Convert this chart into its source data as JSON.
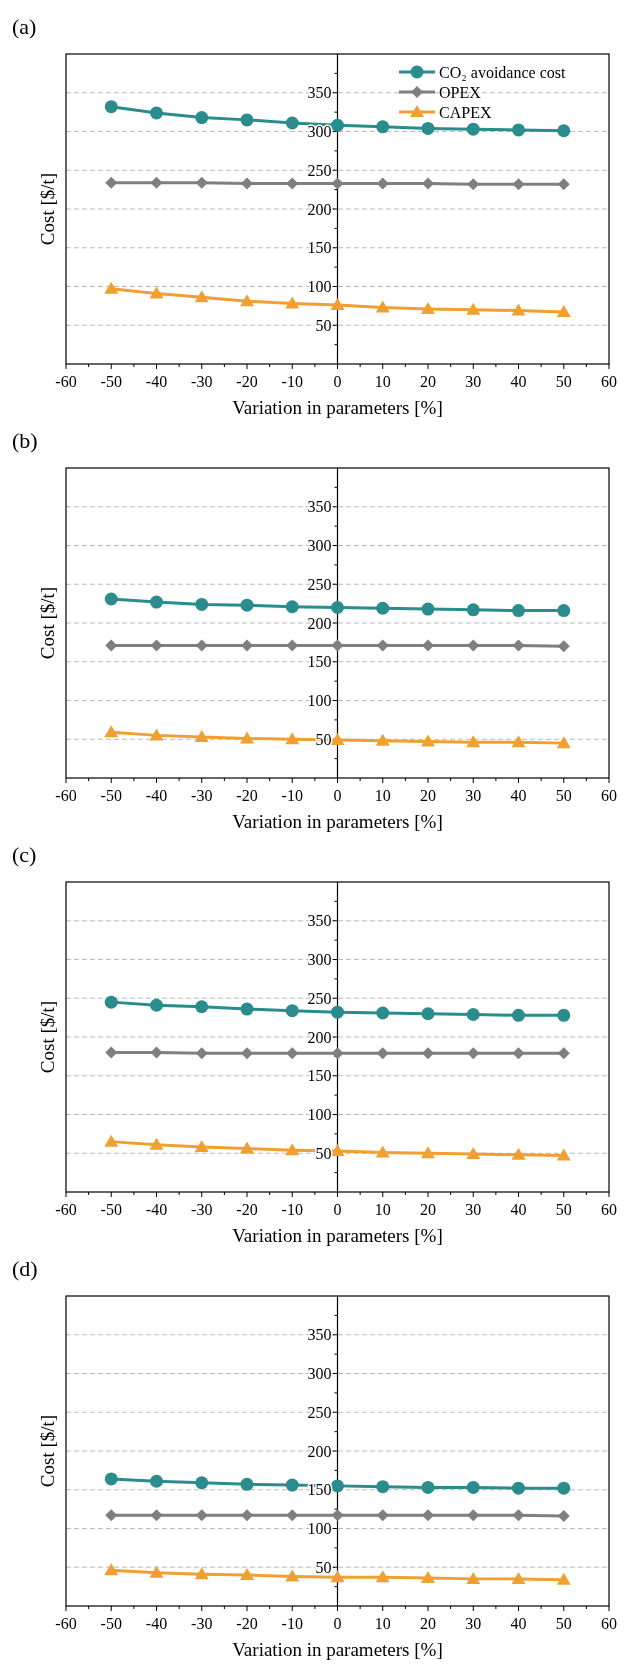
{
  "chart_data": [
    {
      "type": "line",
      "title": "(a)",
      "xlabel": "Variation in parameters [%]",
      "ylabel": "Cost [$/t]",
      "x": [
        -50,
        -40,
        -30,
        -20,
        -10,
        0,
        10,
        20,
        30,
        40,
        50
      ],
      "xlim": [
        -60,
        60
      ],
      "ylim": [
        0,
        400
      ],
      "xticks": [
        -60,
        {
          "value": -55,
          "label": null
        },
        -50,
        {
          "value": -45,
          "label": null
        },
        -40,
        {
          "value": -35,
          "label": null
        },
        -30,
        {
          "value": -25,
          "label": null
        },
        -20,
        {
          "value": -15,
          "label": null
        },
        -10,
        {
          "value": -5,
          "label": null
        },
        0,
        {
          "value": 5,
          "label": null
        },
        10,
        {
          "value": 15,
          "label": null
        },
        20,
        {
          "value": 25,
          "label": null
        },
        30,
        {
          "value": 35,
          "label": null
        },
        40,
        {
          "value": 45,
          "label": null
        },
        50,
        {
          "value": 55,
          "label": null
        },
        60
      ],
      "yticks": [
        {
          "value": 25,
          "label": null
        },
        50,
        {
          "value": 75,
          "label": null
        },
        100,
        {
          "value": 125,
          "label": null
        },
        150,
        {
          "value": 175,
          "label": null
        },
        200,
        {
          "value": 225,
          "label": null
        },
        250,
        {
          "value": 275,
          "label": null
        },
        300,
        {
          "value": 325,
          "label": null
        },
        350,
        {
          "value": 375,
          "label": null
        }
      ],
      "grid": "y",
      "legend": "top right",
      "line_style": "solid",
      "series": [
        {
          "name": "CO₂ avoidance cost",
          "color": "#2a8c8c",
          "marker": "circle",
          "values": [
            332,
            324,
            318,
            315,
            311,
            308,
            306,
            304,
            303,
            302,
            301
          ]
        },
        {
          "name": "OPEX",
          "color": "#7f7f7f",
          "marker": "diamond",
          "values": [
            234,
            234,
            234,
            233,
            233,
            233,
            233,
            233,
            232,
            232,
            232
          ]
        },
        {
          "name": "CAPEX",
          "color": "#f0a030",
          "marker": "triangle",
          "values": [
            97,
            91,
            86,
            81,
            78,
            76,
            73,
            71,
            70,
            69,
            67
          ]
        }
      ]
    },
    {
      "type": "line",
      "title": "(b)",
      "xlabel": "Variation in parameters [%]",
      "ylabel": "Cost [$/t]",
      "x": [
        -50,
        -40,
        -30,
        -20,
        -10,
        0,
        10,
        20,
        30,
        40,
        50
      ],
      "xlim": [
        -60,
        60
      ],
      "ylim": [
        0,
        400
      ],
      "xticks": [
        -60,
        {
          "value": -55,
          "label": null
        },
        -50,
        {
          "value": -45,
          "label": null
        },
        -40,
        {
          "value": -35,
          "label": null
        },
        -30,
        {
          "value": -25,
          "label": null
        },
        -20,
        {
          "value": -15,
          "label": null
        },
        -10,
        {
          "value": -5,
          "label": null
        },
        0,
        {
          "value": 5,
          "label": null
        },
        10,
        {
          "value": 15,
          "label": null
        },
        20,
        {
          "value": 25,
          "label": null
        },
        30,
        {
          "value": 35,
          "label": null
        },
        40,
        {
          "value": 45,
          "label": null
        },
        50,
        {
          "value": 55,
          "label": null
        },
        60
      ],
      "yticks": [
        {
          "value": 25,
          "label": null
        },
        50,
        {
          "value": 75,
          "label": null
        },
        100,
        {
          "value": 125,
          "label": null
        },
        150,
        {
          "value": 175,
          "label": null
        },
        200,
        {
          "value": 225,
          "label": null
        },
        250,
        {
          "value": 275,
          "label": null
        },
        300,
        {
          "value": 325,
          "label": null
        },
        350,
        {
          "value": 375,
          "label": null
        }
      ],
      "grid": "y",
      "line_style": "solid",
      "series": [
        {
          "color": "#2a8c8c",
          "marker": "circle",
          "values": [
            231,
            227,
            224,
            223,
            221,
            220,
            219,
            218,
            217,
            216,
            216
          ]
        },
        {
          "color": "#7f7f7f",
          "marker": "diamond",
          "values": [
            171,
            171,
            171,
            171,
            171,
            171,
            171,
            171,
            171,
            171,
            170
          ]
        },
        {
          "color": "#f0a030",
          "marker": "triangle",
          "values": [
            59,
            55,
            53,
            51,
            50,
            49,
            48,
            47,
            46,
            46,
            45
          ]
        }
      ]
    },
    {
      "type": "line",
      "title": "(c)",
      "xlabel": "Variation in parameters [%]",
      "ylabel": "Cost [$/t]",
      "x": [
        -50,
        -40,
        -30,
        -20,
        -10,
        0,
        10,
        20,
        30,
        40,
        50
      ],
      "xlim": [
        -60,
        60
      ],
      "ylim": [
        0,
        400
      ],
      "xticks": [
        -60,
        {
          "value": -55,
          "label": null
        },
        -50,
        {
          "value": -45,
          "label": null
        },
        -40,
        {
          "value": -35,
          "label": null
        },
        -30,
        {
          "value": -25,
          "label": null
        },
        -20,
        {
          "value": -15,
          "label": null
        },
        -10,
        {
          "value": -5,
          "label": null
        },
        0,
        {
          "value": 5,
          "label": null
        },
        10,
        {
          "value": 15,
          "label": null
        },
        20,
        {
          "value": 25,
          "label": null
        },
        30,
        {
          "value": 35,
          "label": null
        },
        40,
        {
          "value": 45,
          "label": null
        },
        50,
        {
          "value": 55,
          "label": null
        },
        60
      ],
      "yticks": [
        {
          "value": 25,
          "label": null
        },
        50,
        {
          "value": 75,
          "label": null
        },
        100,
        {
          "value": 125,
          "label": null
        },
        150,
        {
          "value": 175,
          "label": null
        },
        200,
        {
          "value": 225,
          "label": null
        },
        250,
        {
          "value": 275,
          "label": null
        },
        300,
        {
          "value": 325,
          "label": null
        },
        350,
        {
          "value": 375,
          "label": null
        }
      ],
      "grid": "y",
      "line_style": "solid",
      "series": [
        {
          "color": "#2a8c8c",
          "marker": "circle",
          "values": [
            245,
            241,
            239,
            236,
            234,
            232,
            231,
            230,
            229,
            228,
            228
          ]
        },
        {
          "color": "#7f7f7f",
          "marker": "diamond",
          "values": [
            180,
            180,
            179,
            179,
            179,
            179,
            179,
            179,
            179,
            179,
            179
          ]
        },
        {
          "color": "#f0a030",
          "marker": "triangle",
          "values": [
            65,
            61,
            58,
            56,
            54,
            53,
            51,
            50,
            49,
            48,
            47
          ]
        }
      ]
    },
    {
      "type": "line",
      "title": "(d)",
      "xlabel": "Variation in parameters [%]",
      "ylabel": "Cost [$/t]",
      "x": [
        -50,
        -40,
        -30,
        -20,
        -10,
        0,
        10,
        20,
        30,
        40,
        50
      ],
      "xlim": [
        -60,
        60
      ],
      "ylim": [
        0,
        400
      ],
      "xticks": [
        -60,
        {
          "value": -55,
          "label": null
        },
        -50,
        {
          "value": -45,
          "label": null
        },
        -40,
        {
          "value": -35,
          "label": null
        },
        -30,
        {
          "value": -25,
          "label": null
        },
        -20,
        {
          "value": -15,
          "label": null
        },
        -10,
        {
          "value": -5,
          "label": null
        },
        0,
        {
          "value": 5,
          "label": null
        },
        10,
        {
          "value": 15,
          "label": null
        },
        20,
        {
          "value": 25,
          "label": null
        },
        30,
        {
          "value": 35,
          "label": null
        },
        40,
        {
          "value": 45,
          "label": null
        },
        50,
        {
          "value": 55,
          "label": null
        },
        60
      ],
      "yticks": [
        {
          "value": 25,
          "label": null
        },
        50,
        {
          "value": 75,
          "label": null
        },
        100,
        {
          "value": 125,
          "label": null
        },
        150,
        {
          "value": 175,
          "label": null
        },
        200,
        {
          "value": 225,
          "label": null
        },
        250,
        {
          "value": 275,
          "label": null
        },
        300,
        {
          "value": 325,
          "label": null
        },
        350,
        {
          "value": 375,
          "label": null
        }
      ],
      "grid": "y",
      "line_style": "solid",
      "series": [
        {
          "color": "#2a8c8c",
          "marker": "circle",
          "values": [
            164,
            161,
            159,
            157,
            156,
            155,
            154,
            153,
            153,
            152,
            152
          ]
        },
        {
          "color": "#7f7f7f",
          "marker": "diamond",
          "values": [
            117,
            117,
            117,
            117,
            117,
            117,
            117,
            117,
            117,
            117,
            116
          ]
        },
        {
          "color": "#f0a030",
          "marker": "triangle",
          "values": [
            46,
            43,
            41,
            40,
            38,
            37,
            37,
            36,
            35,
            35,
            34
          ]
        }
      ]
    }
  ]
}
